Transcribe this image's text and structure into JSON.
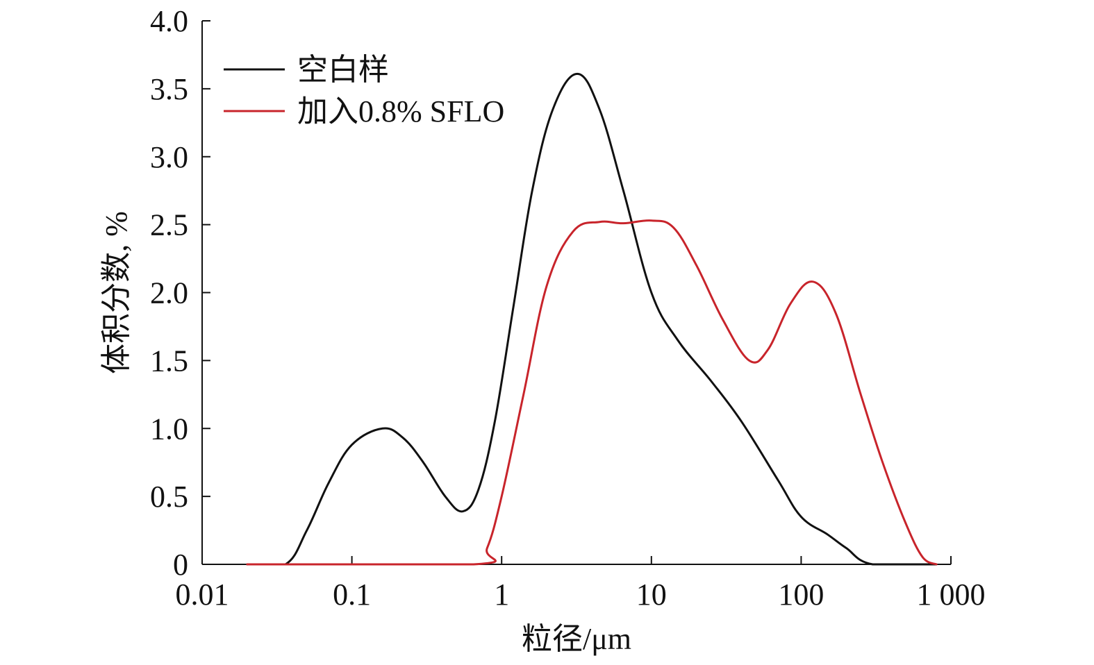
{
  "chart_data": {
    "type": "line",
    "title": "",
    "xlabel": "粒径/μm",
    "ylabel": "体积分数, %",
    "x_scale": "log",
    "xlim": [
      0.01,
      1000
    ],
    "ylim": [
      0,
      4.0
    ],
    "x_ticks": [
      0.01,
      0.1,
      1,
      10,
      100,
      1000
    ],
    "x_tick_labels": [
      "0.01",
      "0.1",
      "1",
      "10",
      "100",
      "1 000"
    ],
    "y_ticks": [
      0,
      0.5,
      1.0,
      1.5,
      2.0,
      2.5,
      3.0,
      3.5,
      4.0
    ],
    "y_tick_labels": [
      "0",
      "0.5",
      "1.0",
      "1.5",
      "2.0",
      "2.5",
      "3.0",
      "3.5",
      "4.0"
    ],
    "grid": false,
    "legend_position": "top-left",
    "series": [
      {
        "name": "空白样",
        "color": "#111111",
        "points": [
          {
            "x": 0.02,
            "y": 0.0
          },
          {
            "x": 0.036,
            "y": 0.0
          },
          {
            "x": 0.05,
            "y": 0.25
          },
          {
            "x": 0.07,
            "y": 0.6
          },
          {
            "x": 0.1,
            "y": 0.88
          },
          {
            "x": 0.16,
            "y": 1.0
          },
          {
            "x": 0.22,
            "y": 0.93
          },
          {
            "x": 0.3,
            "y": 0.75
          },
          {
            "x": 0.42,
            "y": 0.5
          },
          {
            "x": 0.55,
            "y": 0.39
          },
          {
            "x": 0.7,
            "y": 0.55
          },
          {
            "x": 0.9,
            "y": 1.05
          },
          {
            "x": 1.2,
            "y": 1.9
          },
          {
            "x": 1.6,
            "y": 2.75
          },
          {
            "x": 2.2,
            "y": 3.35
          },
          {
            "x": 3.2,
            "y": 3.61
          },
          {
            "x": 4.5,
            "y": 3.35
          },
          {
            "x": 6.5,
            "y": 2.75
          },
          {
            "x": 10,
            "y": 2.0
          },
          {
            "x": 15,
            "y": 1.65
          },
          {
            "x": 25,
            "y": 1.35
          },
          {
            "x": 40,
            "y": 1.05
          },
          {
            "x": 70,
            "y": 0.62
          },
          {
            "x": 100,
            "y": 0.35
          },
          {
            "x": 150,
            "y": 0.22
          },
          {
            "x": 200,
            "y": 0.12
          },
          {
            "x": 300,
            "y": 0.0
          },
          {
            "x": 800,
            "y": 0.0
          }
        ]
      },
      {
        "name": "加入0.8% SFLO",
        "color": "#c8242b",
        "points": [
          {
            "x": 0.02,
            "y": 0.0
          },
          {
            "x": 0.65,
            "y": 0.0
          },
          {
            "x": 0.8,
            "y": 0.12
          },
          {
            "x": 1.0,
            "y": 0.5
          },
          {
            "x": 1.4,
            "y": 1.25
          },
          {
            "x": 2.0,
            "y": 2.05
          },
          {
            "x": 3.0,
            "y": 2.45
          },
          {
            "x": 4.5,
            "y": 2.52
          },
          {
            "x": 6.5,
            "y": 2.51
          },
          {
            "x": 10,
            "y": 2.53
          },
          {
            "x": 14,
            "y": 2.48
          },
          {
            "x": 20,
            "y": 2.2
          },
          {
            "x": 30,
            "y": 1.8
          },
          {
            "x": 45,
            "y": 1.5
          },
          {
            "x": 60,
            "y": 1.58
          },
          {
            "x": 85,
            "y": 1.92
          },
          {
            "x": 120,
            "y": 2.08
          },
          {
            "x": 170,
            "y": 1.85
          },
          {
            "x": 250,
            "y": 1.25
          },
          {
            "x": 350,
            "y": 0.75
          },
          {
            "x": 500,
            "y": 0.3
          },
          {
            "x": 650,
            "y": 0.05
          },
          {
            "x": 800,
            "y": 0.0
          }
        ]
      }
    ]
  }
}
